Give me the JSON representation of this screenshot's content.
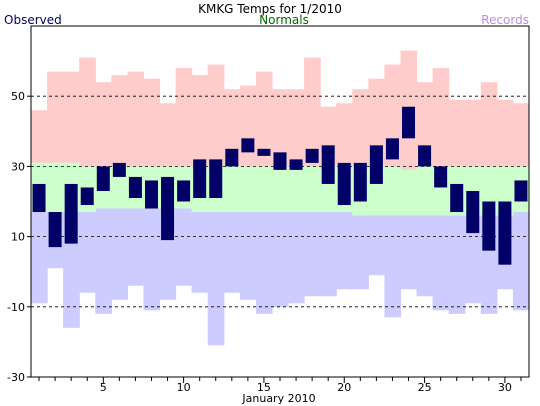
{
  "chart_data": {
    "type": "bar",
    "title": "KMKG Temps for 1/2010",
    "xlabel": "January 2010",
    "ylabel": "",
    "legend": [
      {
        "label": "Observed",
        "color": "#000066"
      },
      {
        "label": "Normals",
        "color": "#006600"
      },
      {
        "label": "Records",
        "color": "#c08adc"
      }
    ],
    "legend_placement": "top",
    "xlim": [
      0.5,
      31.5
    ],
    "ylim": [
      -30,
      70
    ],
    "y_ticks": [
      "50",
      "30",
      "10",
      "-10",
      "-30"
    ],
    "y_tick_values": [
      50,
      30,
      10,
      -10,
      -30
    ],
    "x_ticks": [
      "5",
      "10",
      "15",
      "20",
      "25",
      "30"
    ],
    "x_tick_values": [
      5,
      10,
      15,
      20,
      25,
      30
    ],
    "grid": "horizontal dashed at 50, 30, 10, -10",
    "days": [
      1,
      2,
      3,
      4,
      5,
      6,
      7,
      8,
      9,
      10,
      11,
      12,
      13,
      14,
      15,
      16,
      17,
      18,
      19,
      20,
      21,
      22,
      23,
      24,
      25,
      26,
      27,
      28,
      29,
      30,
      31
    ],
    "series": [
      {
        "name": "Observed",
        "color": "#000066",
        "high": [
          25,
          17,
          25,
          24,
          30,
          31,
          27,
          26,
          27,
          26,
          32,
          32,
          35,
          38,
          35,
          34,
          32,
          35,
          36,
          31,
          31,
          36,
          38,
          47,
          36,
          30,
          25,
          23,
          20,
          20,
          26
        ],
        "low": [
          17,
          7,
          8,
          19,
          23,
          27,
          21,
          18,
          9,
          20,
          21,
          21,
          30,
          34,
          33,
          29,
          29,
          31,
          25,
          19,
          20,
          25,
          32,
          38,
          30,
          24,
          17,
          11,
          6,
          2,
          20
        ]
      },
      {
        "name": "Normals",
        "color": "#ccffcc",
        "high": [
          31,
          31,
          31,
          30,
          30,
          30,
          30,
          30,
          30,
          30,
          30,
          30,
          30,
          30,
          30,
          30,
          30,
          30,
          30,
          30,
          30,
          30,
          30,
          29,
          30,
          30,
          30,
          30,
          30,
          30,
          30
        ],
        "low": [
          17,
          17,
          17,
          17,
          18,
          18,
          18,
          18,
          18,
          18,
          17,
          17,
          17,
          17,
          17,
          17,
          17,
          17,
          17,
          17,
          16,
          16,
          16,
          16,
          16,
          16,
          16,
          16,
          16,
          16,
          17
        ]
      },
      {
        "name": "Records",
        "color": "#ffcccc",
        "record_high": [
          46,
          57,
          57,
          61,
          54,
          56,
          57,
          55,
          48,
          58,
          56,
          59,
          52,
          53,
          57,
          52,
          52,
          61,
          47,
          48,
          52,
          55,
          59,
          63,
          54,
          58,
          49,
          49,
          54,
          49,
          48
        ],
        "record_low": [
          -9,
          1,
          -16,
          -6,
          -12,
          -8,
          -4,
          -11,
          -8,
          -4,
          -6,
          -21,
          -6,
          -8,
          -12,
          -10,
          -9,
          -7,
          -7,
          -5,
          -5,
          -1,
          -13,
          -5,
          -7,
          -11,
          -12,
          -9,
          -12,
          -5,
          -11
        ]
      }
    ]
  }
}
